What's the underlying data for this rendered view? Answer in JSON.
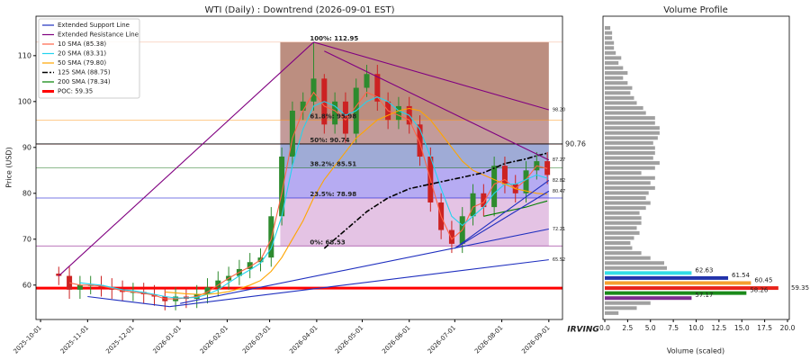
{
  "chart_data": [
    {
      "type": "candlestick",
      "title": "WTI (Daily) : Downtrend (2026-09-01 EST)",
      "y_label": "Price (USD)",
      "x": [
        "2025-10-13",
        "2025-10-20",
        "2025-10-27",
        "2025-11-03",
        "2025-11-10",
        "2025-11-17",
        "2025-11-24",
        "2025-12-01",
        "2025-12-08",
        "2025-12-15",
        "2025-12-22",
        "2025-12-29",
        "2026-01-05",
        "2026-01-12",
        "2026-01-19",
        "2026-01-26",
        "2026-02-02",
        "2026-02-09",
        "2026-02-16",
        "2026-02-23",
        "2026-03-02",
        "2026-03-09",
        "2026-03-16",
        "2026-03-23",
        "2026-03-30",
        "2026-04-06",
        "2026-04-13",
        "2026-04-20",
        "2026-04-27",
        "2026-05-04",
        "2026-05-11",
        "2026-05-18",
        "2026-05-25",
        "2026-06-01",
        "2026-06-08",
        "2026-06-15",
        "2026-06-22",
        "2026-06-29",
        "2026-07-06",
        "2026-07-13",
        "2026-07-20",
        "2026-07-27",
        "2026-08-03",
        "2026-08-10",
        "2026-08-17",
        "2026-08-24",
        "2026-08-31"
      ],
      "open": [
        62.5,
        62,
        59,
        60,
        60,
        59.5,
        59,
        58.5,
        58.5,
        58,
        57.5,
        56.5,
        57.5,
        57,
        58,
        59.5,
        61,
        62,
        63.5,
        65,
        66,
        75,
        88,
        98,
        100,
        105,
        95,
        100,
        93,
        103,
        106,
        100,
        96,
        99,
        95,
        88,
        78,
        72,
        69,
        75,
        80,
        77,
        86,
        82,
        80,
        85,
        87
      ],
      "high": [
        64,
        64,
        62,
        62,
        62,
        61.5,
        61,
        60.5,
        60.5,
        60,
        59.5,
        59.5,
        59.5,
        60,
        61.5,
        63,
        64,
        65.5,
        67,
        68,
        77,
        90,
        100,
        102,
        113,
        106,
        102,
        102,
        105,
        108,
        108,
        102,
        101,
        101,
        97,
        90,
        80,
        74,
        77,
        82,
        82,
        88,
        88,
        84,
        87,
        89,
        89
      ],
      "low": [
        60,
        57,
        57,
        58,
        57.5,
        57,
        56.5,
        56.5,
        56,
        55.5,
        54.5,
        54.5,
        55,
        55,
        56,
        57.5,
        59,
        60,
        61.5,
        63,
        64,
        73,
        86,
        96,
        98,
        93,
        93,
        91,
        91,
        101,
        98,
        94,
        94,
        93,
        86,
        76,
        70,
        67,
        67,
        73,
        75,
        75,
        80,
        78,
        78,
        83,
        82
      ],
      "close": [
        62,
        59,
        60,
        60,
        59.5,
        59,
        58.5,
        58.5,
        58,
        57.5,
        56.5,
        57.5,
        57,
        58,
        59.5,
        61,
        62,
        63.5,
        65,
        66,
        75,
        88,
        98,
        100,
        105,
        95,
        100,
        93,
        103,
        106,
        100,
        96,
        99,
        95,
        88,
        78,
        72,
        69,
        75,
        80,
        77,
        86,
        82,
        80,
        85,
        87,
        84
      ],
      "up_color": "#2e8b2e",
      "down_color": "#cc2222",
      "series": [
        {
          "name": "10 SMA (85.38)",
          "color": "#ff6347",
          "values": [
            null,
            60.5,
            60,
            60,
            59.8,
            59.3,
            58.8,
            58.5,
            58.2,
            57.8,
            57,
            57,
            57.2,
            57.5,
            58.5,
            60,
            61.5,
            62.8,
            64,
            65.5,
            70,
            80,
            92,
            98,
            102,
            99,
            98,
            96,
            99,
            102,
            101,
            98,
            97,
            96,
            91,
            83,
            75,
            70,
            72,
            77,
            78,
            82,
            83,
            81,
            83,
            86,
            85.4
          ]
        },
        {
          "name": "20 SMA (83.31)",
          "color": "#22d3ee",
          "values": [
            null,
            null,
            60.5,
            60.2,
            60,
            59.5,
            59,
            58.8,
            58.4,
            58,
            57.5,
            57.2,
            57.2,
            57.3,
            58,
            59,
            60.5,
            62,
            63.3,
            64.8,
            68,
            75,
            86,
            94,
            99,
            100,
            99,
            97,
            98,
            100,
            101,
            100,
            98,
            97,
            94,
            88,
            81,
            75,
            73,
            75,
            77,
            80,
            82,
            82,
            83,
            84,
            83.3
          ]
        },
        {
          "name": "50 SMA (79.80)",
          "color": "#ffa500",
          "values": [
            null,
            null,
            null,
            null,
            null,
            null,
            null,
            null,
            null,
            null,
            58.5,
            58.3,
            58.1,
            58,
            58,
            58.2,
            58.6,
            59.2,
            60,
            61,
            63,
            66,
            70,
            74,
            79,
            83,
            86,
            89,
            92,
            94,
            96,
            97,
            98,
            98.5,
            98,
            96,
            93,
            90,
            87,
            85,
            84,
            83,
            82,
            81,
            80.5,
            80,
            79.8
          ]
        },
        {
          "name": "125 SMA (88.75)",
          "color": "#000000",
          "dash": "6 2 2 2",
          "values": [
            null,
            null,
            null,
            null,
            null,
            null,
            null,
            null,
            null,
            null,
            null,
            null,
            null,
            null,
            null,
            null,
            null,
            null,
            null,
            null,
            null,
            null,
            null,
            null,
            null,
            68,
            70,
            72,
            74,
            76,
            77.5,
            79,
            80,
            81,
            81.5,
            82,
            82.5,
            83,
            83.5,
            84,
            84.5,
            85.5,
            86.5,
            87,
            87.5,
            88.2,
            88.75
          ]
        },
        {
          "name": "200 SMA (78.34)",
          "color": "#008000",
          "values": [
            null,
            null,
            null,
            null,
            null,
            null,
            null,
            null,
            null,
            null,
            null,
            null,
            null,
            null,
            null,
            null,
            null,
            null,
            null,
            null,
            null,
            null,
            null,
            null,
            null,
            null,
            null,
            null,
            null,
            null,
            null,
            null,
            null,
            null,
            null,
            null,
            null,
            null,
            null,
            null,
            75,
            75.5,
            76,
            76.5,
            77,
            77.7,
            78.34
          ]
        }
      ],
      "support": {
        "name": "Extended Support Line",
        "color": "#1f2fbf",
        "segments": [
          {
            "x": [
              "2025-11-01",
              "2025-12-25"
            ],
            "values": [
              57.5,
              55.3
            ],
            "value_labels": [
              null,
              null
            ]
          },
          {
            "x": [
              "2025-12-25",
              "2026-09-01"
            ],
            "values": [
              55.3,
              65.52
            ],
            "value_labels": [
              null,
              "65.52"
            ]
          },
          {
            "x": [
              "2026-01-01",
              "2026-09-01"
            ],
            "values": [
              56,
              72.21
            ],
            "value_labels": [
              null,
              "72.21"
            ]
          },
          {
            "x": [
              "2026-07-01",
              "2026-09-01"
            ],
            "values": [
              68,
              80.47
            ],
            "value_labels": [
              null,
              "80.47"
            ]
          },
          {
            "x": [
              "2026-07-01",
              "2026-09-01"
            ],
            "values": [
              68,
              82.82
            ],
            "value_labels": [
              null,
              "82.82"
            ]
          }
        ]
      },
      "resistance": {
        "name": "Extended Resistance Line",
        "color": "#800080",
        "segments": [
          {
            "x": [
              "2025-10-13",
              "2026-03-30"
            ],
            "values": [
              62,
              112.95
            ],
            "value_labels": [
              null,
              null
            ]
          },
          {
            "x": [
              "2026-03-30",
              "2026-09-01"
            ],
            "values": [
              112.95,
              98.2
            ],
            "value_labels": [
              null,
              "98.20"
            ]
          },
          {
            "x": [
              "2026-04-06",
              "2026-09-01"
            ],
            "values": [
              111,
              87.27
            ],
            "value_labels": [
              null,
              "87.27"
            ]
          }
        ]
      },
      "fib": {
        "x": [
          "2026-03-08",
          "2026-09-01"
        ],
        "levels": [
          {
            "label": "0%: 68.53",
            "value": 68.53,
            "color": "#800080",
            "fill": "#dfb8df"
          },
          {
            "label": "23.5%: 78.98",
            "value": 78.98,
            "color": "#0000cc",
            "fill": "#a99cf0"
          },
          {
            "label": "38.2%: 85.51",
            "value": 85.51,
            "color": "#006400",
            "fill": "#8e9ccf"
          },
          {
            "label": "50%: 90.74",
            "value": 90.74,
            "color": "#dd0000",
            "fill": "#b88a88"
          },
          {
            "label": "61.8%: 95.98",
            "value": 95.98,
            "color": "#ff8c00",
            "fill": "#b07a6a"
          },
          {
            "label": "100%: 112.95",
            "value": 112.95,
            "color": "#f4a582",
            "fill": null
          }
        ]
      },
      "hlines": [
        {
          "value": 90.76,
          "color": "#000000"
        }
      ],
      "poc": {
        "name": "POC: 59.35",
        "value": 59.35,
        "color": "#ff0000"
      },
      "xlim": [
        "2025-09-28",
        "2026-09-10"
      ],
      "ylim": [
        52.5,
        118.6
      ],
      "xticks": [
        "2025-10-01",
        "2025-11-01",
        "2025-12-01",
        "2026-01-01",
        "2026-02-01",
        "2026-03-01",
        "2026-04-01",
        "2026-05-01",
        "2026-06-01",
        "2026-07-01",
        "2026-08-01",
        "2026-09-01"
      ],
      "yticks": [
        60,
        70,
        80,
        90,
        100,
        110
      ],
      "watermark": "IRVING"
    },
    {
      "type": "hbar",
      "title": "Volume Profile",
      "x_label": "Volume (scaled)",
      "xlim": [
        0,
        20
      ],
      "ylim": [
        52.5,
        118.6
      ],
      "xticks": [
        {
          "value": 0,
          "label": "0.0"
        },
        {
          "value": 2.5,
          "label": "2.5"
        },
        {
          "value": 5,
          "label": "5.0"
        },
        {
          "value": 7.5,
          "label": "7.5"
        },
        {
          "value": 10,
          "label": "10.0"
        },
        {
          "value": 12.5,
          "label": "12.5"
        },
        {
          "value": 15,
          "label": "15.0"
        },
        {
          "value": 17.5,
          "label": "17.5"
        },
        {
          "value": 20,
          "label": "20.0"
        }
      ],
      "bins": {
        "color": "#a0a0a0",
        "prices": [
          53.9,
          54.99,
          56.08,
          63.72,
          64.81,
          65.9,
          66.99,
          68.08,
          69.17,
          70.26,
          71.35,
          72.44,
          73.53,
          74.62,
          75.71,
          76.8,
          77.89,
          78.98,
          80.07,
          81.16,
          82.25,
          83.34,
          84.43,
          85.52,
          86.61,
          87.7,
          88.79,
          89.88,
          90.97,
          92.06,
          93.15,
          94.24,
          95.33,
          96.42,
          97.51,
          98.6,
          99.69,
          100.78,
          101.87,
          102.96,
          104.05,
          105.14,
          106.23,
          107.32,
          108.41,
          109.5,
          110.59,
          111.68,
          112.77,
          113.86,
          114.95,
          116.04
        ],
        "values": [
          1.5,
          3.5,
          5,
          6.8,
          6.5,
          5,
          4,
          3,
          2.8,
          3.2,
          3.8,
          3.5,
          4,
          4,
          3.8,
          4.5,
          5,
          4.5,
          4.8,
          5.5,
          5,
          5.5,
          4,
          5.5,
          6,
          5.3,
          5.5,
          5.5,
          5.3,
          5.8,
          6,
          6,
          5.5,
          5.5,
          4.5,
          4.2,
          3.5,
          3.2,
          2.8,
          3,
          2.5,
          2,
          2.5,
          2,
          1.5,
          1.8,
          1.2,
          1,
          1,
          0.8,
          0.8,
          0.6
        ]
      },
      "levels": [
        {
          "price": 62.63,
          "value": 9.5,
          "color": "#33dde6"
        },
        {
          "price": 61.54,
          "value": 13.5,
          "color": "#2233aa"
        },
        {
          "price": 60.45,
          "value": 16,
          "color": "#f5a030"
        },
        {
          "price": 59.35,
          "value": 19,
          "color": "#e8231a"
        },
        {
          "price": 58.26,
          "value": 15.5,
          "color": "#1a8a1a"
        },
        {
          "price": 57.17,
          "value": 9.5,
          "color": "#7b2d8e"
        }
      ]
    }
  ]
}
